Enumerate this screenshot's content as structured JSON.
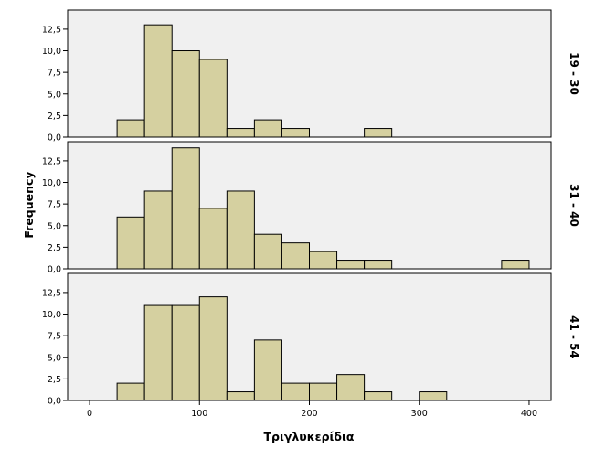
{
  "chart_data": {
    "type": "bar",
    "subtype": "paneled-histogram",
    "xlabel": "Τριγλυκερίδια",
    "ylabel": "Frequency",
    "xlim": [
      -20,
      420
    ],
    "ylim": [
      0,
      14.5
    ],
    "xticks": [
      0,
      100,
      200,
      300,
      400
    ],
    "xtick_labels": [
      "0",
      "100",
      "200",
      "300",
      "400"
    ],
    "yticks": [
      0,
      2.5,
      5,
      7.5,
      10,
      12.5
    ],
    "ytick_labels": [
      "0,0",
      "2,5",
      "5,0",
      "7,5",
      "10,0",
      "12,5"
    ],
    "bin_edges": [
      25,
      50,
      75,
      100,
      125,
      150,
      175,
      200,
      225,
      250,
      275,
      300,
      325,
      350,
      375,
      400
    ],
    "panels": [
      {
        "label": "19 - 30",
        "values": [
          2,
          13,
          10,
          9,
          1,
          2,
          1,
          0,
          0,
          1,
          0,
          0,
          0,
          0,
          0
        ]
      },
      {
        "label": "31 - 40",
        "values": [
          6,
          9,
          14,
          7,
          9,
          4,
          3,
          2,
          1,
          1,
          0,
          0,
          0,
          0,
          1
        ]
      },
      {
        "label": "41 - 54",
        "values": [
          2,
          11,
          11,
          12,
          1,
          7,
          2,
          2,
          3,
          1,
          0,
          1,
          0,
          0,
          0
        ]
      }
    ],
    "colors": {
      "bar": "#d5d0a0",
      "panel": "#f0f0f0",
      "frame": "#000000"
    },
    "grid": false,
    "legend": "none"
  }
}
